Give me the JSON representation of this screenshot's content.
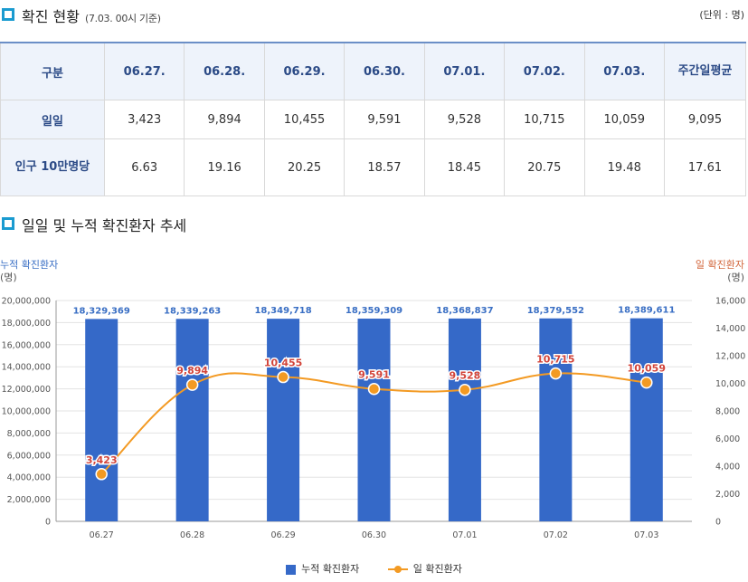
{
  "header": {
    "title": "확진 현황",
    "subtitle": "(7.03. 00시 기준)",
    "unit": "(단위 : 명)"
  },
  "table": {
    "headers": [
      "구분",
      "06.27.",
      "06.28.",
      "06.29.",
      "06.30.",
      "07.01.",
      "07.02.",
      "07.03.",
      "주간일평균"
    ],
    "rows": [
      {
        "label": "일일",
        "values": [
          "3,423",
          "9,894",
          "10,455",
          "9,591",
          "9,528",
          "10,715",
          "10,059",
          "9,095"
        ]
      },
      {
        "label": "인구 10만명당",
        "values": [
          "6.63",
          "19.16",
          "20.25",
          "18.57",
          "18.45",
          "20.75",
          "19.48",
          "17.61"
        ]
      }
    ]
  },
  "trend": {
    "title": "일일 및 누적 확진환자 추세",
    "left_axis_title": "누적 확진환자",
    "left_axis_unit": "(명)",
    "right_axis_title": "일 확진환자",
    "right_axis_unit": "(명)"
  },
  "colors": {
    "bar": "#3569c8",
    "line": "#f39a23",
    "line_label": "#d2443a",
    "bar_label": "#3a6fc4"
  },
  "chart_data": {
    "type": "bar",
    "categories": [
      "06.27",
      "06.28",
      "06.29",
      "06.30",
      "07.01",
      "07.02",
      "07.03"
    ],
    "series": [
      {
        "name": "누적 확진환자",
        "type": "bar",
        "axis": "left",
        "values": [
          18329369,
          18339263,
          18349718,
          18359309,
          18368837,
          18379552,
          18389611
        ],
        "labels": [
          "18,329,369",
          "18,339,263",
          "18,349,718",
          "18,359,309",
          "18,368,837",
          "18,379,552",
          "18,389,611"
        ]
      },
      {
        "name": "일 확진환자",
        "type": "line",
        "axis": "right",
        "values": [
          3423,
          9894,
          10455,
          9591,
          9528,
          10715,
          10059
        ],
        "labels": [
          "3,423",
          "9,894",
          "10,455",
          "9,591",
          "9,528",
          "10,715",
          "10,059"
        ]
      }
    ],
    "y_left": {
      "min": 0,
      "max": 20000000,
      "step": 2000000,
      "ticks": [
        "0",
        "2,000,000",
        "4,000,000",
        "6,000,000",
        "8,000,000",
        "10,000,000",
        "12,000,000",
        "14,000,000",
        "16,000,000",
        "18,000,000",
        "20,000,000"
      ]
    },
    "y_right": {
      "min": 0,
      "max": 16000,
      "step": 2000,
      "ticks": [
        "0",
        "2,000",
        "4,000",
        "6,000",
        "8,000",
        "10,000",
        "12,000",
        "14,000",
        "16,000"
      ]
    },
    "legend": [
      "누적 확진환자",
      "일 확진환자"
    ]
  }
}
